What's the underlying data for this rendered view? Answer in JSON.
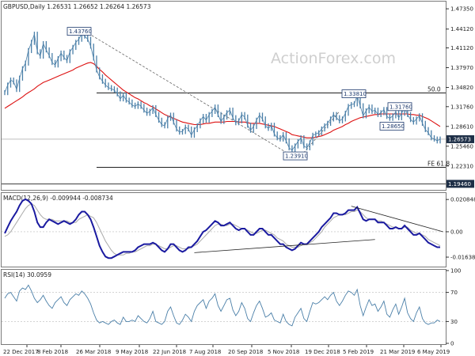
{
  "chart_data": {
    "type": "line",
    "symbol": "GBPUSD",
    "timeframe": "Daily",
    "price_header": "GBPUSD,Daily  1.26531 1.26652 1.26264 1.26573",
    "watermark": "ActionForex.com",
    "x_labels": [
      "22 Dec 2017",
      "8 Feb 2018",
      "26 Mar 2018",
      "9 May 2018",
      "22 Jun 2018",
      "7 Aug 2018",
      "20 Sep 2018",
      "5 Nov 2018",
      "19 Dec 2018",
      "5 Feb 2019",
      "21 Mar 2019",
      "6 May 2019"
    ],
    "price_panel": {
      "ylim": [
        1.185,
        1.485
      ],
      "y_ticks": [
        "1.47350",
        "1.44120",
        "1.41120",
        "1.37970",
        "1.34820",
        "1.31760",
        "1.28610",
        "1.25460",
        "1.22310"
      ],
      "current_price": "1.26573",
      "bottom_level": "1.19460",
      "levels": [
        {
          "label": "50.0",
          "price": 1.3395,
          "color": "#000000"
        },
        {
          "label": "FE 61.8",
          "price": 1.221,
          "color": "#000000"
        }
      ],
      "annotations": [
        "1.43760",
        "1.33810",
        "1.31760",
        "1.28650",
        "1.23910"
      ],
      "series": [
        {
          "name": "Close",
          "color": "#4a7fa8"
        },
        {
          "name": "MA",
          "color": "#dd1111"
        }
      ],
      "close": [
        1.34,
        1.352,
        1.36,
        1.357,
        1.345,
        1.363,
        1.378,
        1.387,
        1.407,
        1.42,
        1.433,
        1.405,
        1.398,
        1.418,
        1.408,
        1.399,
        1.388,
        1.384,
        1.394,
        1.403,
        1.396,
        1.391,
        1.405,
        1.412,
        1.42,
        1.425,
        1.434,
        1.43,
        1.425,
        1.414,
        1.395,
        1.376,
        1.365,
        1.358,
        1.352,
        1.348,
        1.346,
        1.344,
        1.338,
        1.33,
        1.336,
        1.328,
        1.325,
        1.32,
        1.318,
        1.322,
        1.318,
        1.312,
        1.307,
        1.31,
        1.316,
        1.305,
        1.296,
        1.289,
        1.287,
        1.299,
        1.304,
        1.293,
        1.282,
        1.277,
        1.278,
        1.285,
        1.282,
        1.272,
        1.281,
        1.287,
        1.295,
        1.302,
        1.296,
        1.305,
        1.31,
        1.317,
        1.305,
        1.294,
        1.301,
        1.308,
        1.312,
        1.3,
        1.292,
        1.295,
        1.305,
        1.301,
        1.288,
        1.28,
        1.286,
        1.296,
        1.304,
        1.298,
        1.287,
        1.283,
        1.288,
        1.274,
        1.268,
        1.266,
        1.273,
        1.263,
        1.252,
        1.248,
        1.255,
        1.262,
        1.268,
        1.255,
        1.252,
        1.26,
        1.272,
        1.274,
        1.276,
        1.282,
        1.287,
        1.291,
        1.298,
        1.305,
        1.3,
        1.295,
        1.298,
        1.307,
        1.318,
        1.321,
        1.322,
        1.335,
        1.319,
        1.303,
        1.311,
        1.317,
        1.31,
        1.312,
        1.305,
        1.308,
        1.313,
        1.302,
        1.299,
        1.303,
        1.309,
        1.3,
        1.307,
        1.316,
        1.305,
        1.297,
        1.293,
        1.298,
        1.303,
        1.291,
        1.281,
        1.276,
        1.268,
        1.266,
        1.263,
        1.266
      ],
      "ma": [
        1.315,
        1.318,
        1.321,
        1.324,
        1.327,
        1.33,
        1.333,
        1.337,
        1.34,
        1.343,
        1.346,
        1.35,
        1.353,
        1.356,
        1.358,
        1.36,
        1.362,
        1.364,
        1.366,
        1.368,
        1.37,
        1.372,
        1.374,
        1.376,
        1.379,
        1.381,
        1.383,
        1.385,
        1.387,
        1.388,
        1.386,
        1.382,
        1.377,
        1.373,
        1.368,
        1.364,
        1.36,
        1.356,
        1.352,
        1.348,
        1.344,
        1.341,
        1.338,
        1.335,
        1.332,
        1.33,
        1.327,
        1.324,
        1.322,
        1.319,
        1.317,
        1.314,
        1.311,
        1.308,
        1.305,
        1.303,
        1.301,
        1.299,
        1.297,
        1.295,
        1.293,
        1.292,
        1.291,
        1.29,
        1.289,
        1.289,
        1.289,
        1.29,
        1.291,
        1.291,
        1.292,
        1.293,
        1.293,
        1.293,
        1.293,
        1.294,
        1.294,
        1.294,
        1.294,
        1.293,
        1.293,
        1.293,
        1.292,
        1.291,
        1.291,
        1.291,
        1.291,
        1.29,
        1.289,
        1.288,
        1.287,
        1.286,
        1.284,
        1.282,
        1.28,
        1.278,
        1.276,
        1.273,
        1.272,
        1.271,
        1.27,
        1.269,
        1.268,
        1.268,
        1.268,
        1.269,
        1.27,
        1.271,
        1.273,
        1.275,
        1.277,
        1.28,
        1.282,
        1.284,
        1.286,
        1.289,
        1.291,
        1.294,
        1.296,
        1.298,
        1.3,
        1.301,
        1.302,
        1.303,
        1.304,
        1.305,
        1.305,
        1.306,
        1.306,
        1.306,
        1.306,
        1.306,
        1.306,
        1.306,
        1.306,
        1.306,
        1.306,
        1.305,
        1.305,
        1.304,
        1.304,
        1.302,
        1.3,
        1.298,
        1.295,
        1.292,
        1.289,
        1.286
      ]
    },
    "macd_panel": {
      "label": "MACD(12,26,9) -0.009944 -0.008734",
      "ylim": [
        -0.022,
        0.024
      ],
      "y_ticks": [
        "0.020848",
        "0.00",
        "-0.016389"
      ],
      "series": [
        {
          "name": "MACD",
          "color": "#1a1aa0"
        },
        {
          "name": "Signal",
          "color": "#aaaaaa"
        }
      ],
      "macd": [
        -0.001,
        0.003,
        0.007,
        0.01,
        0.013,
        0.017,
        0.02,
        0.021,
        0.02,
        0.018,
        0.013,
        0.006,
        0.003,
        0.003,
        0.006,
        0.008,
        0.007,
        0.006,
        0.005,
        0.006,
        0.007,
        0.006,
        0.005,
        0.006,
        0.008,
        0.011,
        0.013,
        0.013,
        0.011,
        0.008,
        0.003,
        -0.003,
        -0.009,
        -0.013,
        -0.016,
        -0.017,
        -0.017,
        -0.016,
        -0.015,
        -0.014,
        -0.013,
        -0.013,
        -0.013,
        -0.013,
        -0.012,
        -0.01,
        -0.009,
        -0.008,
        -0.008,
        -0.008,
        -0.007,
        -0.008,
        -0.01,
        -0.012,
        -0.013,
        -0.011,
        -0.008,
        -0.008,
        -0.01,
        -0.012,
        -0.013,
        -0.012,
        -0.01,
        -0.01,
        -0.008,
        -0.006,
        -0.003,
        0.0,
        0.001,
        0.003,
        0.005,
        0.007,
        0.006,
        0.004,
        0.004,
        0.005,
        0.006,
        0.004,
        0.002,
        0.001,
        0.002,
        0.002,
        0.0,
        -0.002,
        -0.002,
        0.0,
        0.002,
        0.002,
        0.0,
        -0.002,
        -0.002,
        -0.004,
        -0.006,
        -0.008,
        -0.008,
        -0.01,
        -0.011,
        -0.012,
        -0.011,
        -0.009,
        -0.007,
        -0.008,
        -0.008,
        -0.006,
        -0.004,
        -0.002,
        0.0,
        0.003,
        0.005,
        0.007,
        0.009,
        0.012,
        0.012,
        0.011,
        0.011,
        0.012,
        0.014,
        0.014,
        0.014,
        0.016,
        0.012,
        0.008,
        0.007,
        0.008,
        0.008,
        0.008,
        0.006,
        0.006,
        0.006,
        0.004,
        0.002,
        0.002,
        0.003,
        0.002,
        0.002,
        0.004,
        0.002,
        0.0,
        -0.002,
        -0.002,
        -0.001,
        -0.003,
        -0.005,
        -0.007,
        -0.008,
        -0.009,
        -0.01,
        -0.01
      ],
      "signal": [
        -0.003,
        -0.002,
        0.0,
        0.003,
        0.006,
        0.009,
        0.012,
        0.015,
        0.017,
        0.018,
        0.017,
        0.014,
        0.011,
        0.009,
        0.008,
        0.008,
        0.008,
        0.007,
        0.007,
        0.007,
        0.007,
        0.007,
        0.006,
        0.006,
        0.006,
        0.008,
        0.009,
        0.01,
        0.011,
        0.01,
        0.009,
        0.006,
        0.002,
        -0.002,
        -0.006,
        -0.009,
        -0.012,
        -0.014,
        -0.015,
        -0.015,
        -0.015,
        -0.014,
        -0.014,
        -0.013,
        -0.013,
        -0.012,
        -0.011,
        -0.01,
        -0.009,
        -0.009,
        -0.008,
        -0.008,
        -0.009,
        -0.01,
        -0.011,
        -0.011,
        -0.01,
        -0.009,
        -0.009,
        -0.01,
        -0.011,
        -0.011,
        -0.011,
        -0.01,
        -0.009,
        -0.008,
        -0.006,
        -0.004,
        -0.002,
        0.0,
        0.002,
        0.004,
        0.005,
        0.005,
        0.004,
        0.004,
        0.005,
        0.005,
        0.004,
        0.003,
        0.002,
        0.002,
        0.001,
        0.0,
        -0.001,
        -0.001,
        0.0,
        0.001,
        0.001,
        0.0,
        -0.001,
        -0.002,
        -0.004,
        -0.005,
        -0.006,
        -0.008,
        -0.009,
        -0.01,
        -0.01,
        -0.01,
        -0.009,
        -0.008,
        -0.008,
        -0.007,
        -0.006,
        -0.004,
        -0.002,
        0.0,
        0.003,
        0.005,
        0.007,
        0.009,
        0.01,
        0.011,
        0.011,
        0.011,
        0.012,
        0.013,
        0.013,
        0.014,
        0.013,
        0.011,
        0.009,
        0.008,
        0.008,
        0.008,
        0.007,
        0.007,
        0.006,
        0.005,
        0.004,
        0.003,
        0.003,
        0.002,
        0.002,
        0.003,
        0.003,
        0.001,
        0.0,
        -0.001,
        -0.001,
        -0.002,
        -0.003,
        -0.005,
        -0.006,
        -0.007,
        -0.008,
        -0.009
      ]
    },
    "rsi_panel": {
      "label": "RSI(14) 30.0959",
      "ylim": [
        0,
        100
      ],
      "y_ticks": [
        "100",
        "70",
        "30",
        "0"
      ],
      "series": [
        {
          "name": "RSI",
          "color": "#4a7fa8"
        }
      ],
      "rsi": [
        62,
        68,
        70,
        64,
        58,
        72,
        76,
        74,
        80,
        72,
        62,
        56,
        60,
        66,
        58,
        52,
        48,
        56,
        60,
        64,
        56,
        52,
        60,
        64,
        68,
        66,
        72,
        68,
        62,
        54,
        42,
        32,
        28,
        30,
        28,
        26,
        30,
        32,
        28,
        26,
        36,
        30,
        30,
        32,
        30,
        38,
        34,
        30,
        28,
        34,
        44,
        30,
        28,
        26,
        30,
        44,
        50,
        38,
        28,
        26,
        32,
        40,
        36,
        30,
        44,
        52,
        56,
        60,
        48,
        58,
        62,
        68,
        52,
        44,
        52,
        60,
        62,
        46,
        38,
        44,
        56,
        48,
        34,
        30,
        42,
        52,
        58,
        48,
        36,
        38,
        42,
        32,
        30,
        28,
        40,
        30,
        26,
        24,
        36,
        42,
        48,
        34,
        30,
        44,
        56,
        54,
        56,
        60,
        64,
        60,
        66,
        70,
        58,
        52,
        58,
        66,
        72,
        70,
        66,
        74,
        52,
        38,
        50,
        60,
        52,
        54,
        44,
        50,
        58,
        40,
        36,
        46,
        54,
        40,
        50,
        62,
        42,
        34,
        30,
        42,
        50,
        34,
        28,
        26,
        28,
        28,
        32,
        30
      ]
    }
  }
}
